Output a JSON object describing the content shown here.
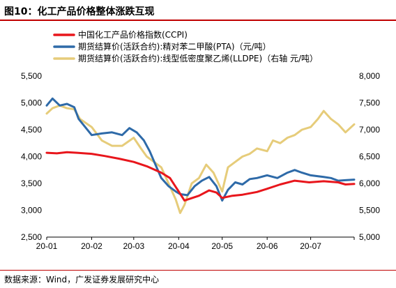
{
  "figure": {
    "title": "图10：化工产品价格整体涨跌互现",
    "source": "数据来源：Wind，广发证券发展研究中心"
  },
  "colors": {
    "accent_rule": "#c00000",
    "ccpi": "#e8161c",
    "pta": "#2e6aa8",
    "lldpe": "#e6cc7a"
  },
  "chart_data": {
    "type": "line",
    "x_ticks": [
      "20-01",
      "20-02",
      "20-03",
      "20-04",
      "20-05",
      "20-06",
      "20-07"
    ],
    "x_range": [
      "2020-01-01",
      "2020-07-31"
    ],
    "y_left": {
      "ticks": [
        "2,500",
        "3,000",
        "3,500",
        "4,000",
        "4,500",
        "5,000",
        "5,500"
      ],
      "range": [
        2500,
        5500
      ]
    },
    "y_right": {
      "ticks": [
        "5,000",
        "5,500",
        "6,000",
        "6,500",
        "7,000",
        "7,500",
        "8,000"
      ],
      "range": [
        5000,
        8000
      ]
    },
    "legend_position": "top-left",
    "grid": false,
    "series": [
      {
        "name": "中国化工产品价格指数(CCPI)",
        "axis": "left",
        "color_key": "ccpi",
        "points": [
          [
            "2020-01-01",
            4070
          ],
          [
            "2020-01-08",
            4060
          ],
          [
            "2020-01-15",
            4080
          ],
          [
            "2020-01-22",
            4070
          ],
          [
            "2020-02-01",
            4050
          ],
          [
            "2020-02-10",
            4010
          ],
          [
            "2020-02-20",
            3960
          ],
          [
            "2020-03-01",
            3900
          ],
          [
            "2020-03-10",
            3820
          ],
          [
            "2020-03-20",
            3700
          ],
          [
            "2020-03-26",
            3600
          ],
          [
            "2020-04-01",
            3350
          ],
          [
            "2020-04-05",
            3180
          ],
          [
            "2020-04-15",
            3270
          ],
          [
            "2020-04-22",
            3370
          ],
          [
            "2020-04-27",
            3330
          ],
          [
            "2020-05-01",
            3230
          ],
          [
            "2020-05-08",
            3270
          ],
          [
            "2020-05-15",
            3290
          ],
          [
            "2020-05-25",
            3340
          ],
          [
            "2020-06-01",
            3400
          ],
          [
            "2020-06-10",
            3480
          ],
          [
            "2020-06-20",
            3550
          ],
          [
            "2020-06-30",
            3520
          ],
          [
            "2020-07-10",
            3540
          ],
          [
            "2020-07-20",
            3520
          ],
          [
            "2020-07-25",
            3480
          ],
          [
            "2020-07-31",
            3490
          ]
        ]
      },
      {
        "name": "期货结算价(活跃合约):精对苯二甲酸(PTA)（元/吨）",
        "axis": "left",
        "color_key": "pta",
        "points": [
          [
            "2020-01-01",
            4950
          ],
          [
            "2020-01-05",
            5080
          ],
          [
            "2020-01-10",
            4950
          ],
          [
            "2020-01-15",
            4980
          ],
          [
            "2020-01-20",
            4920
          ],
          [
            "2020-01-23",
            4700
          ],
          [
            "2020-02-01",
            4400
          ],
          [
            "2020-02-08",
            4430
          ],
          [
            "2020-02-15",
            4450
          ],
          [
            "2020-02-22",
            4400
          ],
          [
            "2020-02-27",
            4530
          ],
          [
            "2020-03-03",
            4450
          ],
          [
            "2020-03-08",
            4300
          ],
          [
            "2020-03-12",
            4100
          ],
          [
            "2020-03-16",
            3850
          ],
          [
            "2020-03-20",
            3600
          ],
          [
            "2020-03-25",
            3450
          ],
          [
            "2020-03-30",
            3350
          ],
          [
            "2020-04-02",
            3300
          ],
          [
            "2020-04-07",
            3280
          ],
          [
            "2020-04-12",
            3450
          ],
          [
            "2020-04-17",
            3550
          ],
          [
            "2020-04-22",
            3620
          ],
          [
            "2020-04-27",
            3450
          ],
          [
            "2020-05-01",
            3180
          ],
          [
            "2020-05-05",
            3380
          ],
          [
            "2020-05-10",
            3520
          ],
          [
            "2020-05-15",
            3480
          ],
          [
            "2020-05-20",
            3580
          ],
          [
            "2020-05-25",
            3600
          ],
          [
            "2020-06-01",
            3650
          ],
          [
            "2020-06-08",
            3600
          ],
          [
            "2020-06-15",
            3700
          ],
          [
            "2020-06-20",
            3750
          ],
          [
            "2020-06-25",
            3700
          ],
          [
            "2020-07-01",
            3650
          ],
          [
            "2020-07-10",
            3620
          ],
          [
            "2020-07-15",
            3600
          ],
          [
            "2020-07-20",
            3550
          ],
          [
            "2020-07-25",
            3560
          ],
          [
            "2020-07-31",
            3570
          ]
        ]
      },
      {
        "name": "期货结算价(活跃合约):线型低密度聚乙烯(LLDPE)（右轴 元/吨）",
        "axis": "right",
        "color_key": "lldpe",
        "points": [
          [
            "2020-01-01",
            7300
          ],
          [
            "2020-01-05",
            7400
          ],
          [
            "2020-01-10",
            7450
          ],
          [
            "2020-01-15",
            7400
          ],
          [
            "2020-01-20",
            7380
          ],
          [
            "2020-01-24",
            7200
          ],
          [
            "2020-02-01",
            7050
          ],
          [
            "2020-02-08",
            6800
          ],
          [
            "2020-02-15",
            6700
          ],
          [
            "2020-02-22",
            6700
          ],
          [
            "2020-03-01",
            6850
          ],
          [
            "2020-03-06",
            6650
          ],
          [
            "2020-03-10",
            6500
          ],
          [
            "2020-03-15",
            6400
          ],
          [
            "2020-03-20",
            6300
          ],
          [
            "2020-03-25",
            6000
          ],
          [
            "2020-03-30",
            5700
          ],
          [
            "2020-04-02",
            5450
          ],
          [
            "2020-04-05",
            5600
          ],
          [
            "2020-04-10",
            6000
          ],
          [
            "2020-04-15",
            6100
          ],
          [
            "2020-04-20",
            6350
          ],
          [
            "2020-04-25",
            6200
          ],
          [
            "2020-05-01",
            5850
          ],
          [
            "2020-05-05",
            6300
          ],
          [
            "2020-05-10",
            6400
          ],
          [
            "2020-05-15",
            6500
          ],
          [
            "2020-05-20",
            6550
          ],
          [
            "2020-05-25",
            6650
          ],
          [
            "2020-06-01",
            6600
          ],
          [
            "2020-06-05",
            6800
          ],
          [
            "2020-06-10",
            6750
          ],
          [
            "2020-06-15",
            6850
          ],
          [
            "2020-06-20",
            6900
          ],
          [
            "2020-06-25",
            7000
          ],
          [
            "2020-07-01",
            7050
          ],
          [
            "2020-07-06",
            7200
          ],
          [
            "2020-07-10",
            7350
          ],
          [
            "2020-07-15",
            7200
          ],
          [
            "2020-07-20",
            7100
          ],
          [
            "2020-07-25",
            6950
          ],
          [
            "2020-07-31",
            7100
          ]
        ]
      }
    ]
  }
}
